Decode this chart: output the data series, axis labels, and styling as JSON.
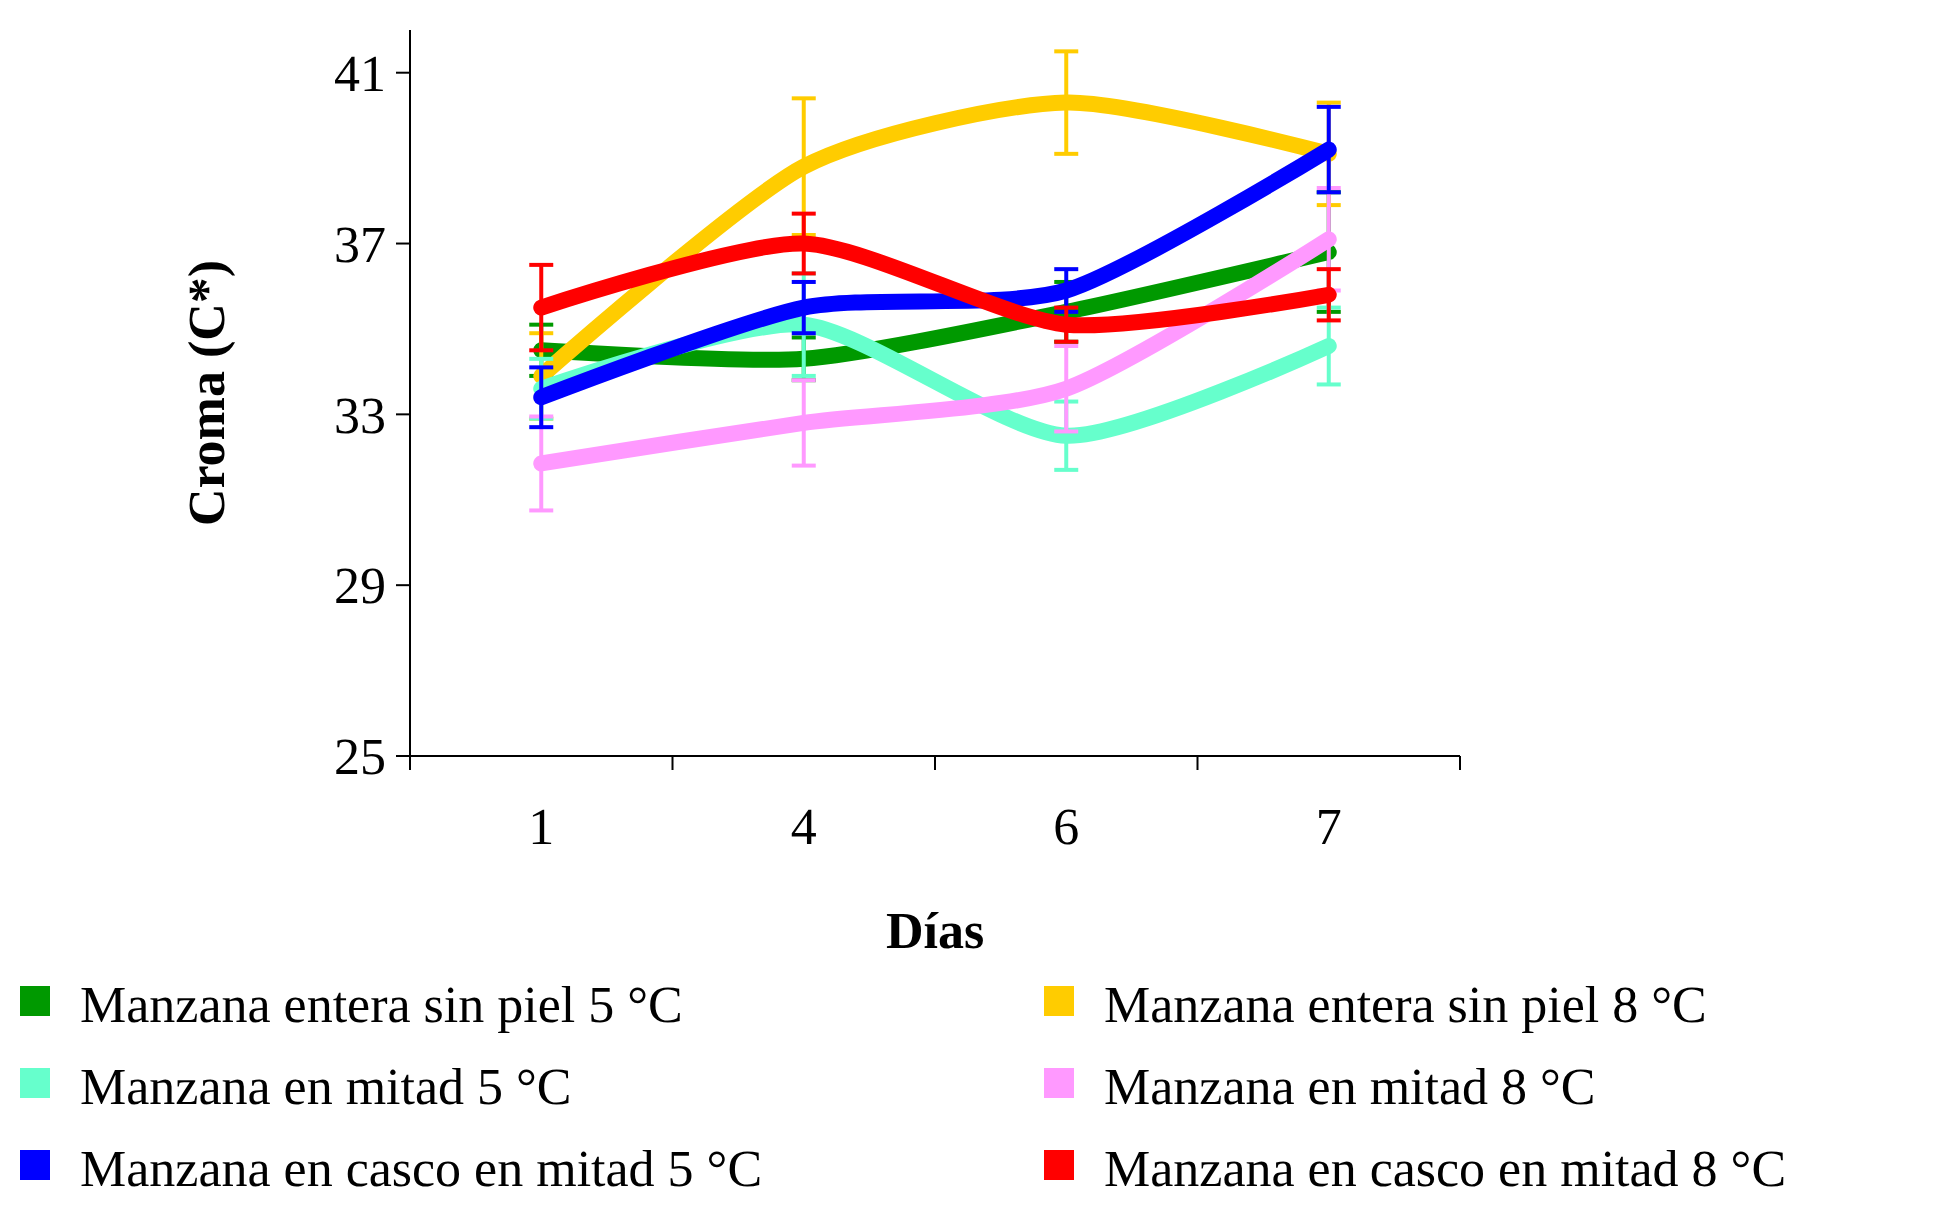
{
  "chart_data": {
    "type": "line",
    "xlabel": "Días",
    "ylabel": "Croma (C*)",
    "categories": [
      "1",
      "4",
      "6",
      "7"
    ],
    "ylim": [
      25,
      42
    ],
    "yticks": [
      25,
      29,
      33,
      37,
      41
    ],
    "grid": false,
    "legend": "bottom",
    "marker": "none",
    "line_style": "solid",
    "series": [
      {
        "name": "Manzana entera sin piel 5 °C",
        "color": "#009900",
        "values": [
          34.5,
          34.3,
          35.4,
          36.8
        ],
        "errors": [
          0.6,
          0.5,
          0.7,
          1.4
        ]
      },
      {
        "name": "Manzana entera sin piel 8 °C",
        "color": "#ffcc00",
        "values": [
          33.9,
          38.8,
          40.3,
          39.1
        ],
        "errors": [
          1.0,
          1.6,
          1.2,
          1.2
        ]
      },
      {
        "name": "Manzana en mitad 5 °C",
        "color": "#66ffcc",
        "values": [
          33.6,
          35.1,
          32.5,
          34.6
        ],
        "errors": [
          0.7,
          1.2,
          0.8,
          0.9
        ]
      },
      {
        "name": "Manzana en mitad 8 °C",
        "color": "#ff99ff",
        "values": [
          31.85,
          32.8,
          33.6,
          37.1
        ],
        "errors": [
          1.1,
          1.0,
          1.0,
          1.2
        ]
      },
      {
        "name": "Manzana en casco en mitad 5 °C",
        "color": "#0000ff",
        "values": [
          33.4,
          35.5,
          35.9,
          39.2
        ],
        "errors": [
          0.7,
          0.6,
          0.5,
          1.0
        ]
      },
      {
        "name": "Manzana en casco en mitad 8 °C",
        "color": "#ff0000",
        "values": [
          35.5,
          37.0,
          35.1,
          35.8
        ],
        "errors": [
          1.0,
          0.7,
          0.4,
          0.6
        ]
      }
    ]
  }
}
